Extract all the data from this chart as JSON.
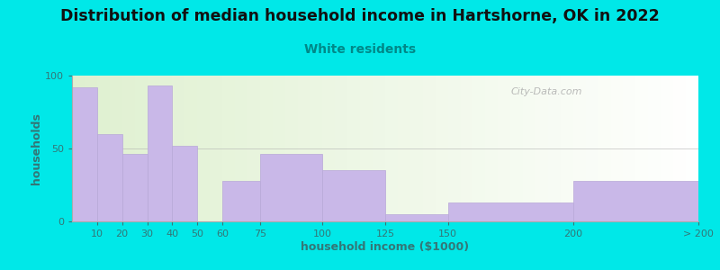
{
  "title": "Distribution of median household income in Hartshorne, OK in 2022",
  "subtitle": "White residents",
  "xlabel": "household income ($1000)",
  "ylabel": "households",
  "bar_labels": [
    "10",
    "20",
    "30",
    "40",
    "50",
    "60",
    "75",
    "100",
    "125",
    "150",
    "200",
    "> 200"
  ],
  "bar_values": [
    92,
    60,
    46,
    93,
    52,
    0,
    28,
    46,
    35,
    5,
    13,
    28
  ],
  "bar_color": "#c9b8e8",
  "bar_edge_color": "#b8a8d8",
  "ylim": [
    0,
    100
  ],
  "yticks": [
    0,
    50,
    100
  ],
  "background_outer": "#00e8e8",
  "title_fontsize": 12.5,
  "subtitle_fontsize": 10,
  "subtitle_color": "#008888",
  "axis_color": "#337777",
  "watermark": "City-Data.com",
  "figsize": [
    8.0,
    3.0
  ],
  "dpi": 100
}
